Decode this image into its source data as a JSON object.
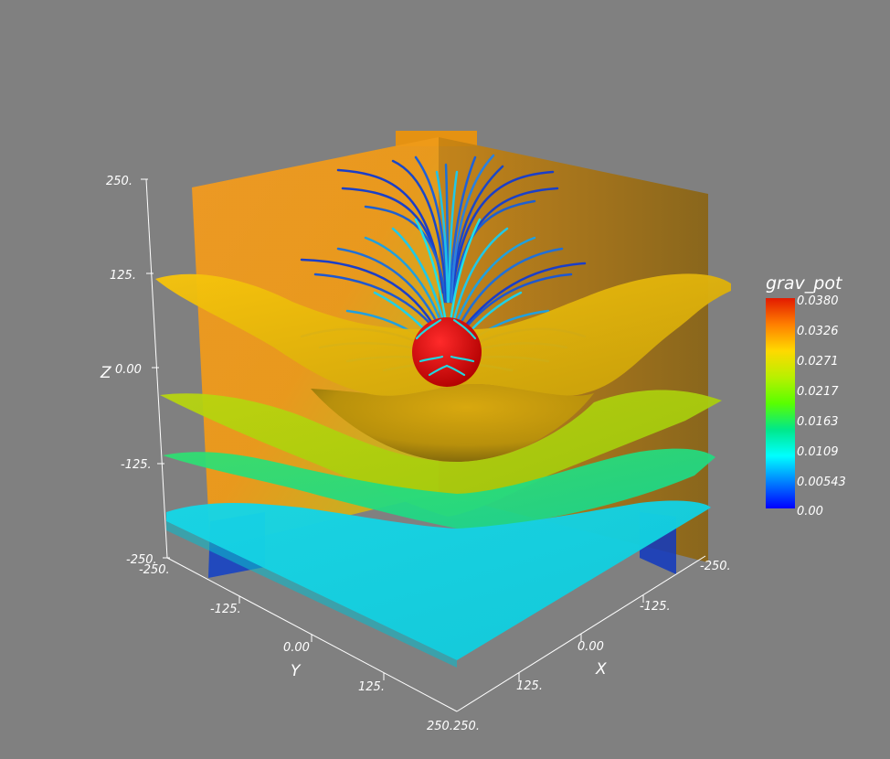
{
  "scalar_bar": {
    "title": "grav_pot",
    "labels": [
      "0.0380",
      "0.0326",
      "0.0271",
      "0.0217",
      "0.0163",
      "0.0109",
      "0.00543",
      "0.00"
    ],
    "colors": [
      "#e31a00",
      "#ff7f00",
      "#ffd900",
      "#b9f000",
      "#59ff00",
      "#00e88a",
      "#00ffff",
      "#0080ff",
      "#0000ff"
    ]
  },
  "axes": {
    "z": {
      "title": "Z",
      "ticks": [
        "250.",
        "125.",
        "0.00",
        "-125.",
        "-250."
      ]
    },
    "y": {
      "title": "Y",
      "ticks": [
        "-250.",
        "-125.",
        "0.00",
        "125.",
        "250."
      ]
    },
    "x": {
      "title": "X",
      "ticks": [
        "-250.",
        "-125.",
        "0.00",
        "125.",
        "250."
      ]
    }
  },
  "colors": {
    "background": "#808080",
    "sphere": "#e00000",
    "streamline_outer": "#1840d0",
    "streamline_inner": "#20e8e8"
  }
}
